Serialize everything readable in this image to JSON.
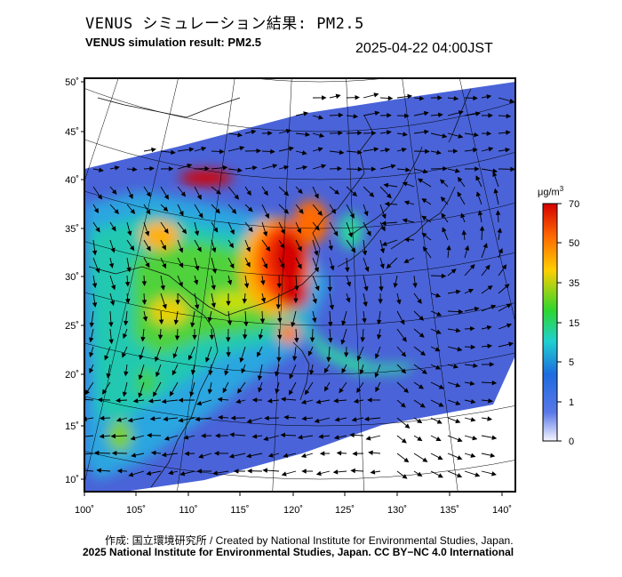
{
  "header": {
    "title_jp": "VENUS シミュレーション結果: PM2.5",
    "title_en": "VENUS simulation result: PM2.5",
    "timestamp": "2025-04-22 04:00JST"
  },
  "map": {
    "lat_ticks": [
      "50˚",
      "45˚",
      "40˚",
      "35˚",
      "30˚",
      "25˚",
      "20˚",
      "15˚",
      "10˚"
    ],
    "lon_ticks": [
      "100˚",
      "105˚",
      "110˚",
      "115˚",
      "120˚",
      "125˚",
      "130˚",
      "135˚",
      "140˚"
    ],
    "lat_range": [
      9,
      51
    ],
    "lon_range": [
      100,
      142
    ],
    "hotspots": [
      {
        "lon": 118.5,
        "lat": 32.0,
        "level": 70
      },
      {
        "lon": 116.5,
        "lat": 29.5,
        "level": 65
      },
      {
        "lon": 121.0,
        "lat": 34.0,
        "level": 55
      },
      {
        "lon": 120.5,
        "lat": 27.5,
        "level": 50
      },
      {
        "lon": 110.0,
        "lat": 40.2,
        "level": 60
      },
      {
        "lon": 107.5,
        "lat": 34.5,
        "level": 35
      },
      {
        "lon": 108.0,
        "lat": 26.5,
        "level": 25
      },
      {
        "lon": 112.5,
        "lat": 30.5,
        "level": 25
      },
      {
        "lon": 123.0,
        "lat": 22.0,
        "level": 18
      },
      {
        "lon": 106.5,
        "lat": 18.0,
        "level": 15
      }
    ]
  },
  "colorbar": {
    "unit": "μg/m",
    "unit_sup": "3",
    "labels": [
      "70",
      "50",
      "35",
      "15",
      "5",
      "1",
      "0"
    ],
    "colors": [
      "#d40000",
      "#ff6a00",
      "#ffcf00",
      "#2ed62e",
      "#1fd0d0",
      "#1e6be0",
      "#2d3fd0",
      "#f5f5ff"
    ]
  },
  "footer": {
    "credit_line1": "作成: 国立環境研究所 / Created by National Institute for Environmental Studies, Japan.",
    "credit_line2": "2025 National Institute for Environmental Studies, Japan. CC BY−NC 4.0 International"
  }
}
